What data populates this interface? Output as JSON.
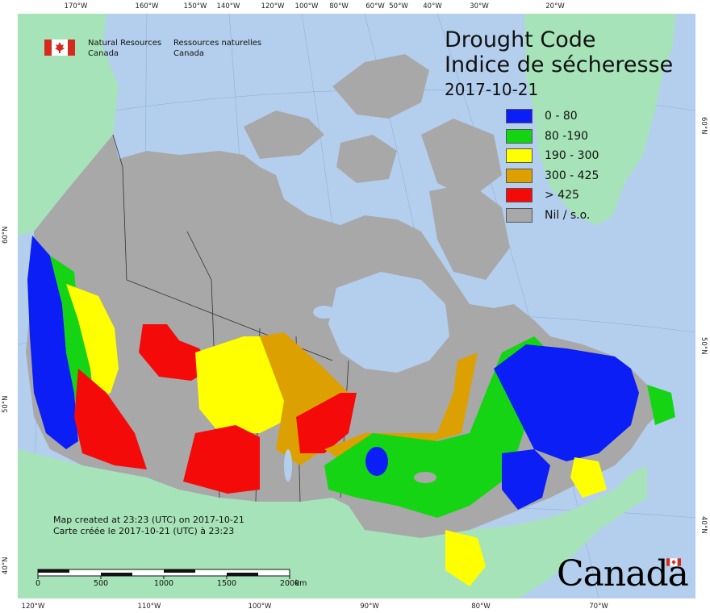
{
  "map": {
    "title_en": "Drought Code",
    "title_fr": "Indice de sécheresse",
    "date": "2017-10-21",
    "legend": [
      {
        "label": "0 - 80",
        "color": "#0a1ef5"
      },
      {
        "label": "80 -190",
        "color": "#14d414"
      },
      {
        "label": "190 - 300",
        "color": "#ffff00"
      },
      {
        "label": "300 - 425",
        "color": "#dca000"
      },
      {
        "label": "> 425",
        "color": "#f50a0a"
      },
      {
        "label": "Nil / s.o.",
        "color": "#a8a8a8"
      }
    ],
    "colors": {
      "ocean": "#b4cfee",
      "land_outside": "#a6e3b8",
      "nodata": "#a8a8a8",
      "lakes": "#b4cfee"
    },
    "agency": {
      "en_line1": "Natural Resources",
      "en_line2": "Canada",
      "fr_line1": "Ressources naturelles",
      "fr_line2": "Canada"
    },
    "created_en": "Map created at 23:23 (UTC) on 2017-10-21",
    "created_fr": "Carte créée le 2017-10-21 (UTC) à 23:23",
    "scale": {
      "labels": [
        "0",
        "500",
        "1000",
        "1500",
        "2000"
      ],
      "unit": "km"
    },
    "wordmark": "Canada",
    "graticule": {
      "top": [
        "170°W",
        "160°W",
        "150°W",
        "140°W",
        "120°W",
        "100°W",
        "80°W",
        "60°W",
        "50°W",
        "40°W",
        "30°W",
        "20°W"
      ],
      "bottom": [
        "120°W",
        "110°W",
        "100°W",
        "90°W",
        "80°W",
        "70°W"
      ],
      "left": [
        "60°N",
        "50°N",
        "40°N"
      ],
      "right": [
        "60°N",
        "50°N",
        "40°N"
      ]
    }
  }
}
